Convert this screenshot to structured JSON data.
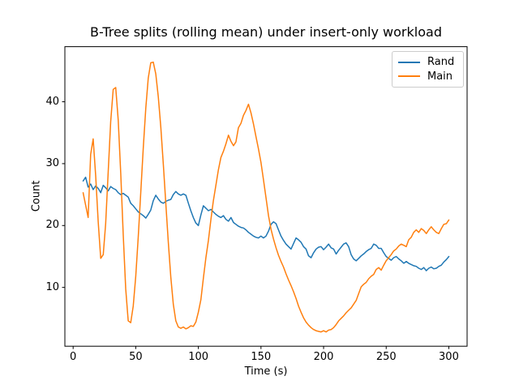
{
  "chart_data": {
    "type": "line",
    "title": "B-Tree splits (rolling mean) under insert-only workload",
    "xlabel": "Time (s)",
    "ylabel": "Count",
    "xlim": [
      -6.6,
      314.6
    ],
    "ylim": [
      0.5,
      48.9
    ],
    "x_ticks": [
      0,
      50,
      100,
      150,
      200,
      250,
      300
    ],
    "y_ticks": [
      10,
      20,
      30,
      40
    ],
    "grid": false,
    "legend": {
      "position": "upper right"
    },
    "axis_color": "#000000",
    "background": "#ffffff",
    "x": [
      8,
      10,
      12,
      14,
      16,
      18,
      20,
      22,
      24,
      26,
      28,
      30,
      32,
      34,
      36,
      38,
      40,
      42,
      44,
      46,
      48,
      50,
      52,
      54,
      56,
      58,
      60,
      62,
      64,
      66,
      68,
      70,
      72,
      74,
      76,
      78,
      80,
      82,
      84,
      86,
      88,
      90,
      92,
      94,
      96,
      98,
      100,
      102,
      104,
      106,
      108,
      110,
      112,
      114,
      116,
      118,
      120,
      122,
      124,
      126,
      128,
      130,
      132,
      134,
      136,
      138,
      140,
      142,
      144,
      146,
      148,
      150,
      152,
      154,
      156,
      158,
      160,
      162,
      164,
      166,
      168,
      170,
      172,
      174,
      176,
      178,
      180,
      182,
      184,
      186,
      188,
      190,
      192,
      194,
      196,
      198,
      200,
      202,
      204,
      206,
      208,
      210,
      212,
      214,
      216,
      218,
      220,
      222,
      224,
      226,
      228,
      230,
      232,
      234,
      236,
      238,
      240,
      242,
      244,
      246,
      248,
      250,
      252,
      254,
      256,
      258,
      260,
      262,
      264,
      266,
      268,
      270,
      272,
      274,
      276,
      278,
      280,
      282,
      284,
      286,
      288,
      290,
      292,
      294,
      296,
      298,
      300
    ],
    "series": [
      {
        "name": "Rand",
        "color": "#1f77b4",
        "values": [
          27.2,
          27.8,
          26.2,
          26.7,
          25.8,
          26.4,
          26.0,
          25.3,
          26.5,
          26.1,
          25.6,
          26.3,
          26.0,
          25.8,
          25.3,
          25.0,
          25.2,
          24.9,
          24.6,
          23.6,
          23.2,
          22.7,
          22.2,
          21.9,
          21.6,
          21.2,
          21.8,
          22.5,
          24.0,
          24.9,
          24.3,
          23.8,
          23.6,
          23.9,
          24.1,
          24.2,
          25.0,
          25.5,
          25.1,
          24.9,
          25.1,
          24.9,
          23.6,
          22.4,
          21.3,
          20.4,
          20.0,
          21.7,
          23.2,
          22.8,
          22.4,
          22.6,
          22.2,
          21.8,
          21.5,
          21.3,
          21.6,
          21.0,
          20.7,
          21.3,
          20.5,
          20.2,
          19.9,
          19.7,
          19.6,
          19.3,
          18.9,
          18.6,
          18.3,
          18.1,
          18.0,
          18.3,
          18.0,
          18.3,
          19.1,
          20.2,
          20.6,
          20.3,
          19.3,
          18.3,
          17.6,
          17.0,
          16.6,
          16.2,
          17.1,
          18.0,
          17.7,
          17.3,
          16.6,
          16.2,
          15.1,
          14.8,
          15.6,
          16.2,
          16.5,
          16.6,
          16.1,
          16.5,
          17.0,
          16.4,
          16.2,
          15.4,
          16.0,
          16.5,
          17.0,
          17.2,
          16.6,
          15.3,
          14.6,
          14.3,
          14.7,
          15.1,
          15.4,
          15.8,
          16.1,
          16.3,
          17.0,
          16.8,
          16.3,
          16.3,
          15.6,
          15.0,
          14.7,
          14.4,
          14.8,
          15.0,
          14.6,
          14.3,
          13.9,
          14.2,
          13.9,
          13.7,
          13.5,
          13.4,
          13.1,
          12.9,
          13.2,
          12.7,
          13.1,
          13.3,
          13.0,
          13.1,
          13.4,
          13.6,
          14.1,
          14.5,
          15.0
        ]
      },
      {
        "name": "Main",
        "color": "#ff7f0e",
        "values": [
          25.3,
          23.3,
          21.3,
          31.5,
          34.0,
          28.0,
          20.6,
          14.7,
          15.3,
          20.3,
          28.6,
          36.8,
          42.0,
          42.3,
          37.0,
          28.4,
          18.4,
          9.8,
          4.6,
          4.3,
          7.0,
          11.8,
          18.2,
          25.4,
          32.6,
          39.0,
          43.8,
          46.3,
          46.4,
          44.5,
          40.8,
          35.9,
          29.9,
          23.5,
          17.2,
          11.7,
          7.3,
          4.6,
          3.6,
          3.4,
          3.6,
          3.3,
          3.5,
          3.8,
          3.7,
          4.4,
          6.0,
          8.0,
          11.5,
          14.8,
          17.6,
          21.0,
          24.0,
          26.5,
          29.0,
          31.0,
          32.0,
          33.2,
          34.6,
          33.6,
          32.9,
          33.5,
          35.8,
          36.5,
          37.8,
          38.6,
          39.6,
          38.2,
          36.4,
          34.4,
          32.4,
          30.2,
          27.4,
          24.5,
          21.6,
          19.4,
          17.8,
          16.4,
          15.2,
          14.2,
          13.3,
          12.2,
          11.2,
          10.3,
          9.3,
          8.2,
          7.0,
          6.0,
          5.1,
          4.4,
          3.9,
          3.5,
          3.2,
          3.0,
          2.9,
          2.8,
          3.0,
          2.8,
          3.1,
          3.2,
          3.5,
          4.0,
          4.6,
          5.0,
          5.4,
          5.9,
          6.3,
          6.7,
          7.3,
          7.9,
          9.0,
          10.1,
          10.5,
          10.8,
          11.4,
          11.8,
          12.1,
          12.9,
          13.2,
          12.8,
          13.6,
          14.3,
          14.8,
          15.3,
          15.9,
          16.2,
          16.7,
          17.0,
          16.8,
          16.6,
          17.7,
          18.1,
          18.9,
          19.3,
          18.9,
          19.5,
          19.2,
          18.7,
          19.3,
          19.8,
          19.3,
          18.9,
          18.7,
          19.5,
          20.2,
          20.3,
          20.9
        ]
      }
    ]
  }
}
